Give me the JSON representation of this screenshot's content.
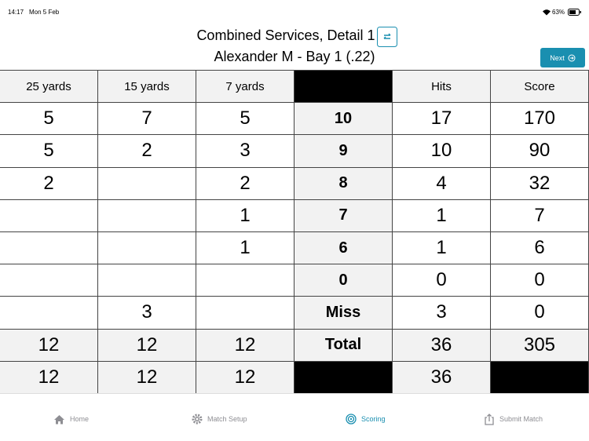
{
  "status_bar": {
    "time": "14:17",
    "date": "Mon 5 Feb",
    "battery": "63%"
  },
  "header": {
    "title": "Combined Services, Detail 1",
    "subtitle": "Alexander M - Bay 1 (.22)",
    "next_button": "Next"
  },
  "table": {
    "columns": [
      "25 yards",
      "15 yards",
      "7 yards",
      null,
      "Hits",
      "Score"
    ],
    "rows": [
      [
        5,
        7,
        5,
        10,
        17,
        170
      ],
      [
        5,
        2,
        3,
        9,
        10,
        90
      ],
      [
        2,
        null,
        2,
        8,
        4,
        32
      ],
      [
        null,
        null,
        1,
        7,
        1,
        7
      ],
      [
        null,
        null,
        1,
        6,
        1,
        6
      ],
      [
        null,
        null,
        null,
        0,
        0,
        0
      ],
      [
        null,
        3,
        null,
        "Miss",
        3,
        0
      ],
      [
        12,
        12,
        12,
        "Total",
        36,
        305
      ],
      [
        12,
        12,
        12,
        null,
        36,
        null
      ]
    ]
  },
  "tab_bar": {
    "tabs": [
      "Home",
      "Match Setup",
      "Scoring",
      "Submit Match"
    ],
    "active": 2
  }
}
